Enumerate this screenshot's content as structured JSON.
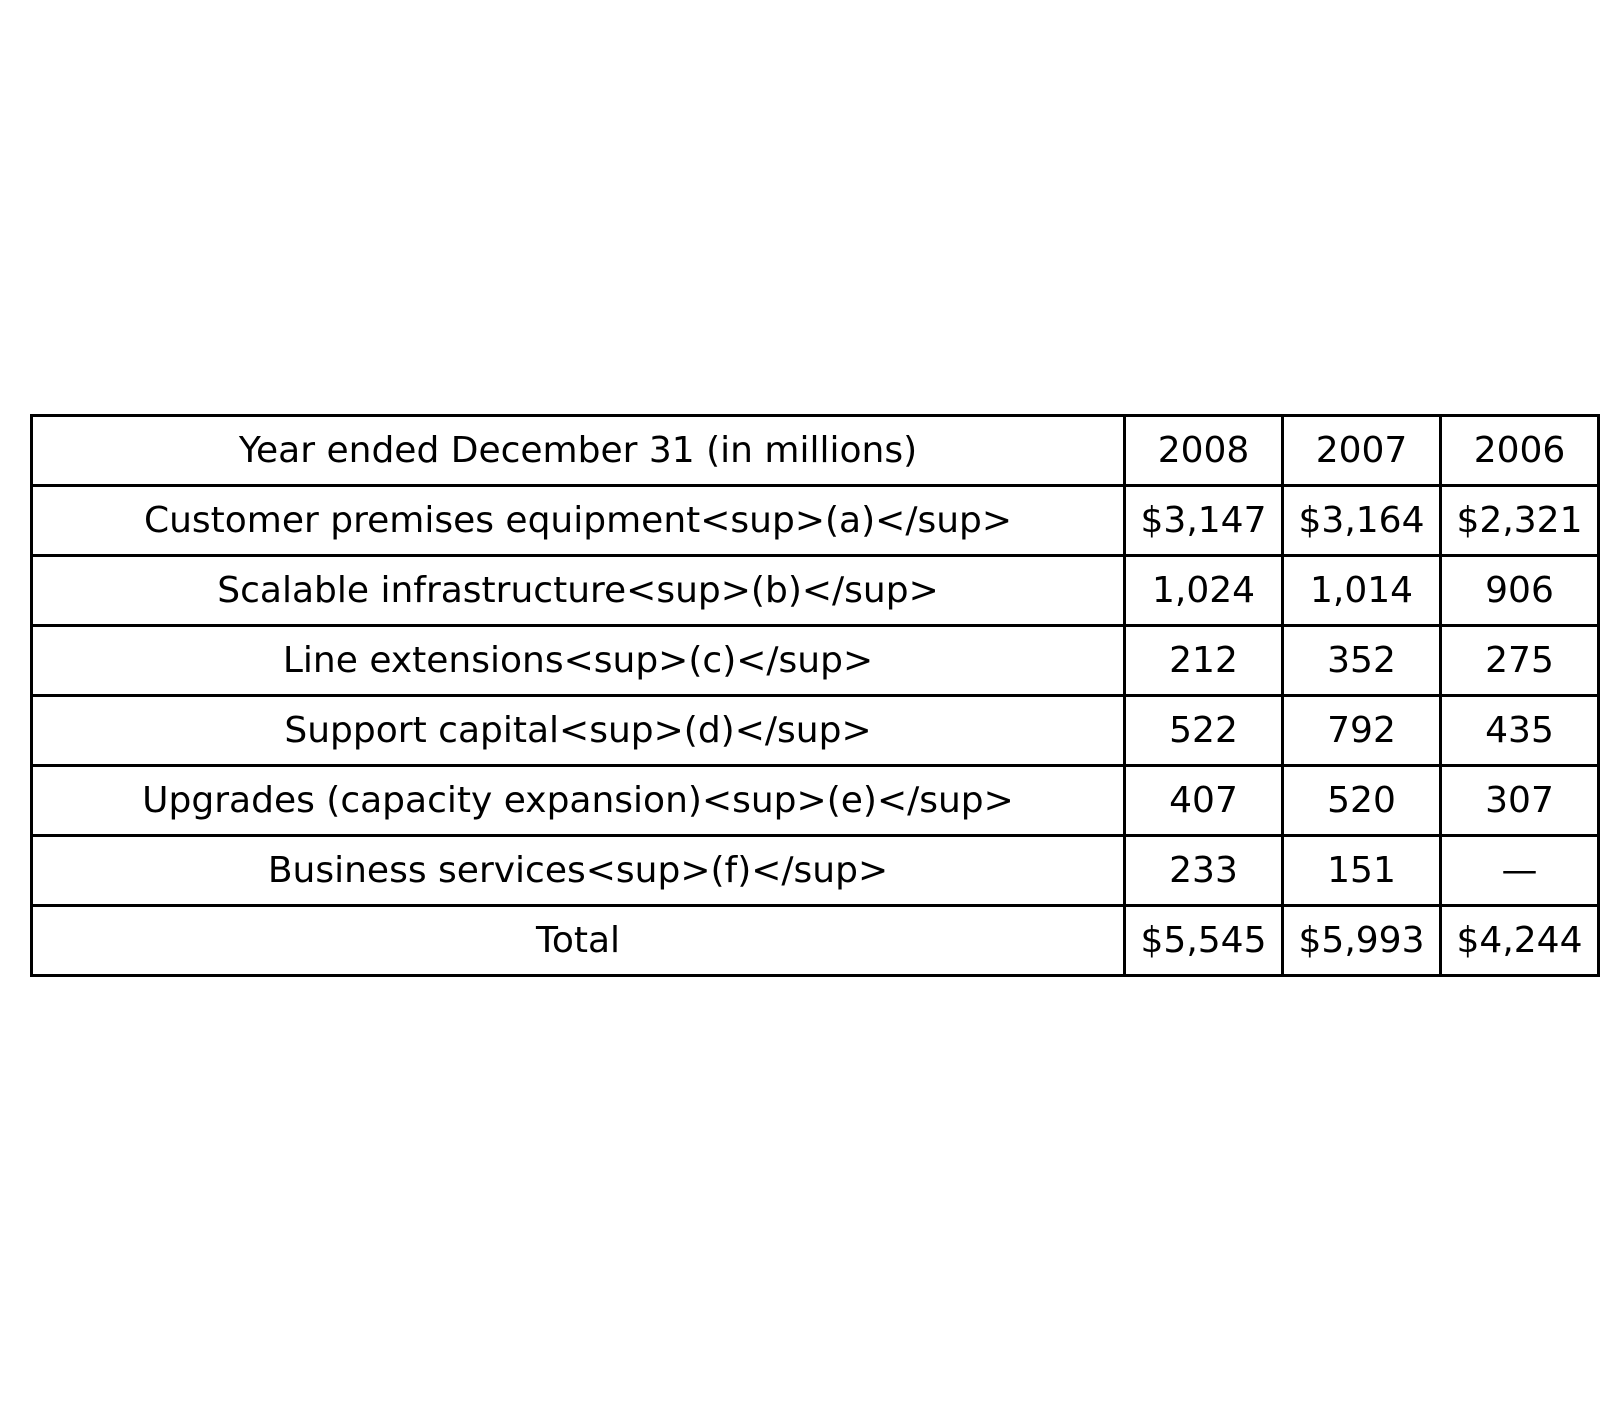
{
  "table": {
    "header": [
      "Year ended December 31 (in millions)",
      "2008",
      "2007",
      "2006"
    ],
    "rows": [
      [
        "Customer premises equipment<sup>(a)</sup>",
        "$3,147",
        "$3,164",
        "$2,321"
      ],
      [
        "Scalable infrastructure<sup>(b)</sup>",
        "1,024",
        "1,014",
        "906"
      ],
      [
        "Line extensions<sup>(c)</sup>",
        "212",
        "352",
        "275"
      ],
      [
        "Support capital<sup>(d)</sup>",
        "522",
        "792",
        "435"
      ],
      [
        "Upgrades (capacity expansion)<sup>(e)</sup>",
        "407",
        "520",
        "307"
      ],
      [
        "Business services<sup>(f)</sup>",
        "233",
        "151",
        "—"
      ],
      [
        "Total",
        "$5,545",
        "$5,993",
        "$4,244"
      ]
    ]
  }
}
